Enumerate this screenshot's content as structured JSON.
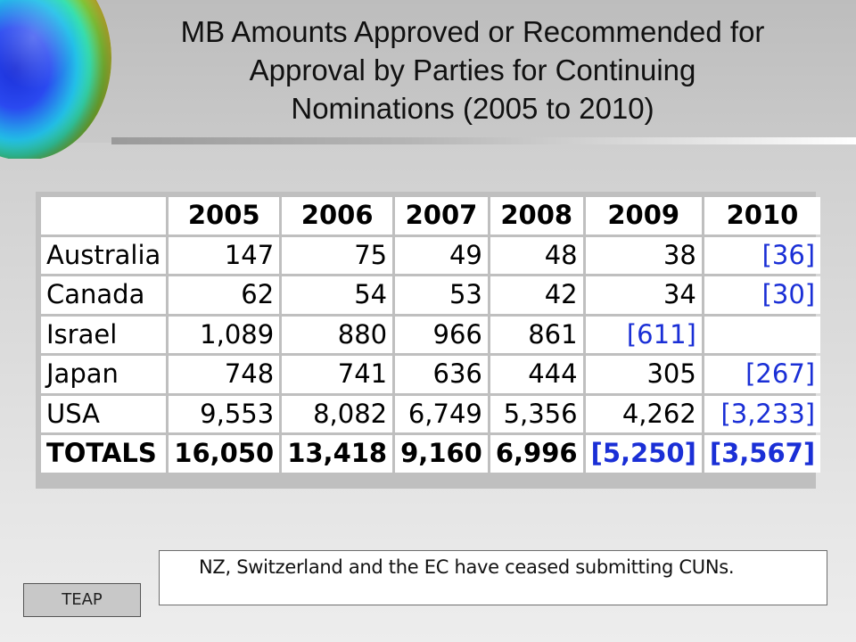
{
  "slide": {
    "title_line1": "MB Amounts Approved or Recommended for",
    "title_line2": "Approval by Parties for Continuing",
    "title_line3": "Nominations (2005 to 2010)",
    "note": "NZ, Switzerland and the EC have ceased submitting CUNs.",
    "footer_label": "TEAP"
  },
  "table": {
    "years": [
      "2005",
      "2006",
      "2007",
      "2008",
      "2009",
      "2010"
    ],
    "rows": [
      {
        "label": "Australia",
        "values": [
          "147",
          "75",
          "49",
          "48",
          "38",
          "[36]"
        ]
      },
      {
        "label": "Canada",
        "values": [
          "62",
          "54",
          "53",
          "42",
          "34",
          "[30]"
        ]
      },
      {
        "label": "Israel",
        "values": [
          "1,089",
          "880",
          "966",
          "861",
          "[611]",
          ""
        ]
      },
      {
        "label": "Japan",
        "values": [
          "748",
          "741",
          "636",
          "444",
          "305",
          "[267]"
        ]
      },
      {
        "label": "USA",
        "values": [
          "9,553",
          "8,082",
          "6,749",
          "5,356",
          "4,262",
          "[3,233]"
        ]
      },
      {
        "label": "TOTALS",
        "values": [
          "16,050",
          "13,418",
          "9,160",
          "6,996",
          "[5,250]",
          "[3,567]"
        ]
      }
    ]
  },
  "colors": {
    "bracketed_value": "#1a2fd6"
  }
}
